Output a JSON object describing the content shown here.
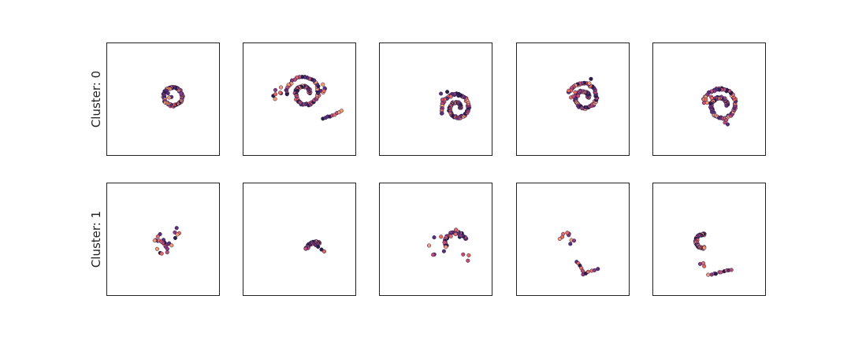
{
  "colors": {
    "dark": "#2b1d4a",
    "purple": "#5a2f79",
    "magenta": "#8b3a7f",
    "pink": "#c14d75",
    "coral": "#e7695f",
    "peach": "#f49a70"
  },
  "chart_data": {
    "type": "scatter",
    "grid": false,
    "ticks": "none",
    "xlim": [
      -5,
      5
    ],
    "ylim": [
      -5,
      5
    ],
    "rows": [
      {
        "label": "Cluster: 0",
        "panels": [
          {
            "shapes": [
              {
                "kind": "arc",
                "cx": 0.8,
                "cy": 0.3,
                "r": 0.8,
                "t0": 40,
                "t1": 380
              },
              {
                "kind": "blob",
                "cx": 0.5,
                "cy": 0.4,
                "r": 0.3,
                "n": 4
              }
            ]
          },
          {
            "shapes": [
              {
                "kind": "spiral",
                "cx": 0.4,
                "cy": 0.6,
                "r0": 0.4,
                "r1": 1.6,
                "t0": 0,
                "t1": 540
              },
              {
                "kind": "blob",
                "cx": -1.9,
                "cy": 0.5,
                "r": 0.8,
                "n": 8
              },
              {
                "kind": "blob",
                "cx": 2.0,
                "cy": 1.0,
                "r": 0.4,
                "n": 6
              },
              {
                "kind": "line",
                "x0": 2.0,
                "y0": -1.7,
                "x1": 3.6,
                "y1": -1.0,
                "n": 9
              }
            ]
          },
          {
            "shapes": [
              {
                "kind": "spiral",
                "cx": 1.8,
                "cy": -0.7,
                "r0": 0.3,
                "r1": 1.4,
                "t0": 0,
                "t1": 560
              },
              {
                "kind": "blob",
                "cx": 0.8,
                "cy": 0.4,
                "r": 0.5,
                "n": 5
              }
            ]
          },
          {
            "shapes": [
              {
                "kind": "spiral",
                "cx": 0.9,
                "cy": 0.2,
                "r0": 0.4,
                "r1": 1.4,
                "t0": 0,
                "t1": 520
              },
              {
                "kind": "blob",
                "cx": 0.0,
                "cy": 0.6,
                "r": 0.5,
                "n": 5
              },
              {
                "kind": "blob",
                "cx": 1.4,
                "cy": 1.6,
                "r": 0.3,
                "n": 3
              }
            ]
          },
          {
            "shapes": [
              {
                "kind": "spiral",
                "cx": 1.0,
                "cy": -0.5,
                "r0": 0.5,
                "r1": 1.6,
                "t0": 0,
                "t1": 520
              },
              {
                "kind": "blob",
                "cx": -0.2,
                "cy": -0.1,
                "r": 0.5,
                "n": 6
              },
              {
                "kind": "blob",
                "cx": 1.6,
                "cy": -2.0,
                "r": 0.3,
                "n": 3
              }
            ]
          }
        ]
      },
      {
        "label": "Cluster: 1",
        "panels": [
          {
            "shapes": [
              {
                "kind": "blob",
                "cx": -0.1,
                "cy": -0.3,
                "r": 0.9,
                "n": 20
              },
              {
                "kind": "blob",
                "cx": 1.0,
                "cy": 0.6,
                "r": 0.6,
                "n": 5
              }
            ]
          },
          {
            "shapes": [
              {
                "kind": "arc",
                "cx": 1.4,
                "cy": -1.1,
                "r": 0.9,
                "t0": 70,
                "t1": 160
              },
              {
                "kind": "line",
                "x0": 1.4,
                "y0": -0.4,
                "x1": 2.1,
                "y1": -1.0,
                "n": 4
              }
            ]
          },
          {
            "shapes": [
              {
                "kind": "arc",
                "cx": 1.7,
                "cy": -0.2,
                "r": 0.9,
                "t0": 20,
                "t1": 200
              },
              {
                "kind": "blob",
                "cx": 0.0,
                "cy": -0.5,
                "r": 0.9,
                "n": 8
              },
              {
                "kind": "blob",
                "cx": 1.7,
                "cy": 0.4,
                "r": 0.6,
                "n": 6
              },
              {
                "kind": "blob",
                "cx": 2.6,
                "cy": -1.5,
                "r": 0.6,
                "n": 3
              }
            ]
          },
          {
            "shapes": [
              {
                "kind": "blob",
                "cx": -0.6,
                "cy": 0.1,
                "r": 0.7,
                "n": 9
              },
              {
                "kind": "line",
                "x0": 0.3,
                "y0": -1.9,
                "x1": 0.9,
                "y1": -2.9,
                "n": 6
              },
              {
                "kind": "line",
                "x0": 0.8,
                "y0": -3.0,
                "x1": 2.1,
                "y1": -2.6,
                "n": 6
              }
            ]
          },
          {
            "shapes": [
              {
                "kind": "arc",
                "cx": -0.6,
                "cy": -0.1,
                "r": 0.6,
                "t0": 80,
                "t1": 280
              },
              {
                "kind": "line",
                "x0": -0.1,
                "y0": -3.1,
                "x1": 1.9,
                "y1": -2.6,
                "n": 10
              },
              {
                "kind": "blob",
                "cx": -0.5,
                "cy": -2.2,
                "r": 0.4,
                "n": 3
              }
            ]
          }
        ]
      }
    ]
  }
}
